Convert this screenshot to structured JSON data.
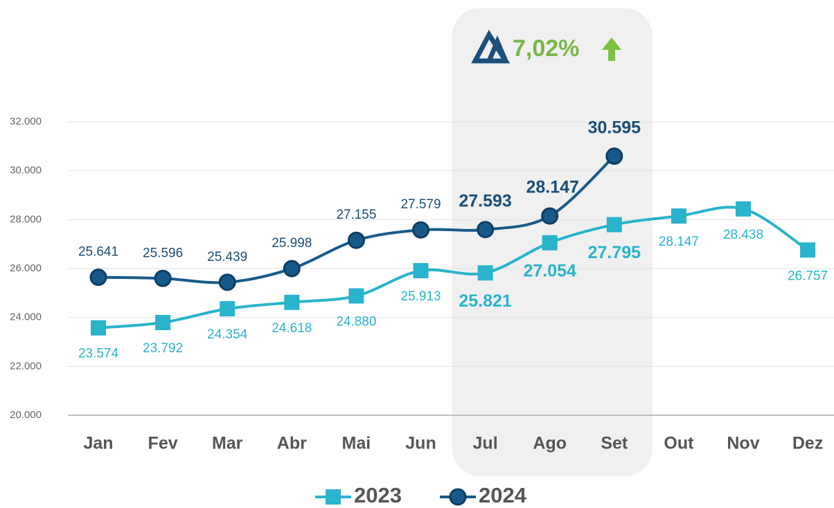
{
  "chart_data": {
    "type": "line",
    "categories": [
      "Jan",
      "Fev",
      "Mar",
      "Abr",
      "Mai",
      "Jun",
      "Jul",
      "Ago",
      "Set",
      "Out",
      "Nov",
      "Dez"
    ],
    "series": [
      {
        "name": "2023",
        "color": "#2ab3cc",
        "marker": "square",
        "values": [
          23574,
          23792,
          24354,
          24618,
          24880,
          25913,
          25821,
          27054,
          27795,
          28147,
          28438,
          26757
        ],
        "value_labels": [
          "23.574",
          "23.792",
          "24.354",
          "24.618",
          "24.880",
          "25.913",
          "25.821",
          "27.054",
          "27.795",
          "28.147",
          "28.438",
          "26.757"
        ]
      },
      {
        "name": "2024",
        "color": "#175a8a",
        "marker": "circle",
        "values": [
          25641,
          25596,
          25439,
          25998,
          27155,
          27579,
          27593,
          28147,
          30595,
          null,
          null,
          null
        ],
        "value_labels": [
          "25.641",
          "25.596",
          "25.439",
          "25.998",
          "27.155",
          "27.579",
          "27.593",
          "28.147",
          "30.595",
          null,
          null,
          null
        ]
      }
    ],
    "ylim": [
      20000,
      32000
    ],
    "yticks": [
      {
        "value": 20000,
        "label": "20.000"
      },
      {
        "value": 22000,
        "label": "22.000"
      },
      {
        "value": 24000,
        "label": "24.000"
      },
      {
        "value": 26000,
        "label": "26.000"
      },
      {
        "value": 28000,
        "label": "28.000"
      },
      {
        "value": 30000,
        "label": "30.000"
      },
      {
        "value": 32000,
        "label": "32.000"
      }
    ],
    "grid": true,
    "highlight": [
      "Jul",
      "Ago",
      "Set"
    ],
    "annotation": "7,02%"
  }
}
